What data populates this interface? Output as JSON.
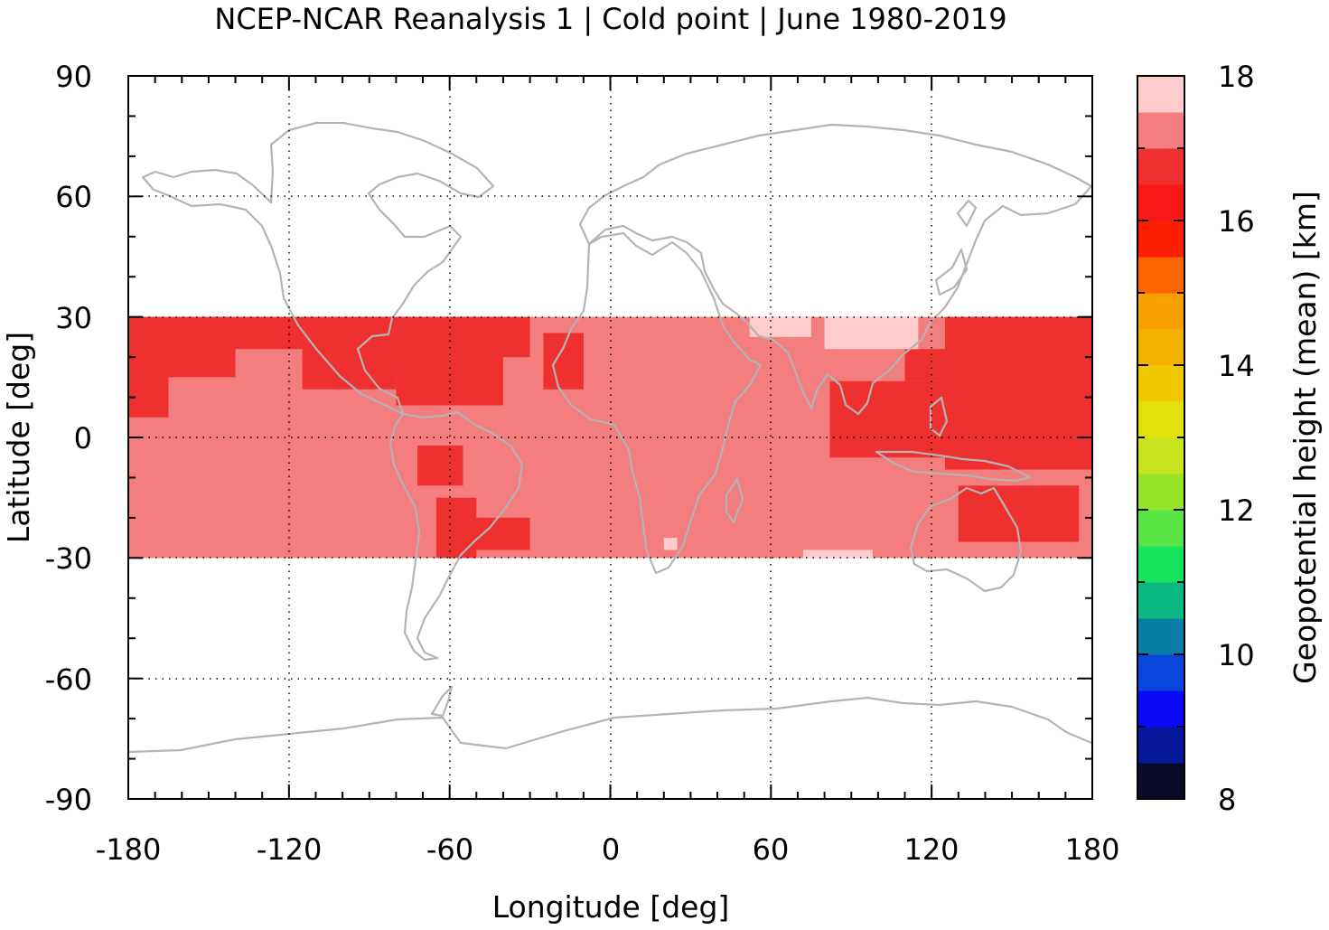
{
  "chart_data": {
    "type": "heatmap",
    "title": "NCEP-NCAR Reanalysis 1 | Cold point | June 1980-2019",
    "xlabel": "Longitude [deg]",
    "ylabel": "Latitude [deg]",
    "colorbar_label": "Geopotential height (mean) [km]",
    "xlim": [
      -180,
      180
    ],
    "ylim": [
      -90,
      90
    ],
    "x_ticks": [
      "-180",
      "-120",
      "-60",
      "0",
      "60",
      "120",
      "180"
    ],
    "x_tick_values": [
      -180,
      -120,
      -60,
      0,
      60,
      120,
      180
    ],
    "y_ticks": [
      "90",
      "60",
      "30",
      "0",
      "-30",
      "-60",
      "-90"
    ],
    "y_tick_values": [
      90,
      60,
      30,
      0,
      -30,
      -60,
      -90
    ],
    "grid": true,
    "data_lat_range": [
      -30,
      30
    ],
    "colorbar": {
      "min": 8,
      "max": 18,
      "step": 0.5,
      "ticks": [
        "18",
        "16",
        "14",
        "12",
        "10",
        "8"
      ],
      "tick_values": [
        18,
        16,
        14,
        12,
        10,
        8
      ],
      "colors": [
        "#0a0a2c",
        "#06189c",
        "#0a0af6",
        "#0a46dc",
        "#0a7ca8",
        "#0ab882",
        "#14e45e",
        "#5ae446",
        "#96e42a",
        "#c8e41e",
        "#e4e00e",
        "#f0c800",
        "#f4b200",
        "#f8a000",
        "#fc6400",
        "#fc1e00",
        "#f81818",
        "#ef3030",
        "#f47d7d",
        "#ffcccc"
      ]
    },
    "field_colors": {
      "17.25": "#ef3030",
      "17.75": "#f47d7d",
      "18.25": "#ffcccc"
    },
    "series": [
      {
        "regions": [
          {
            "value": 17.75,
            "lon": [
              -180,
              180
            ],
            "lat": [
              -30,
              30
            ]
          },
          {
            "value": 17.25,
            "lon": [
              -180,
              -165
            ],
            "lat": [
              5,
              30
            ]
          },
          {
            "value": 17.25,
            "lon": [
              -165,
              -140
            ],
            "lat": [
              15,
              30
            ]
          },
          {
            "value": 17.25,
            "lon": [
              -140,
              -100
            ],
            "lat": [
              22,
              30
            ]
          },
          {
            "value": 17.25,
            "lon": [
              -115,
              -80
            ],
            "lat": [
              12,
              30
            ]
          },
          {
            "value": 17.25,
            "lon": [
              -95,
              -50
            ],
            "lat": [
              16,
              30
            ]
          },
          {
            "value": 17.25,
            "lon": [
              -80,
              -40
            ],
            "lat": [
              8,
              30
            ]
          },
          {
            "value": 17.25,
            "lon": [
              -55,
              -30
            ],
            "lat": [
              20,
              30
            ]
          },
          {
            "value": 17.25,
            "lon": [
              -25,
              -10
            ],
            "lat": [
              12,
              26
            ]
          },
          {
            "value": 17.25,
            "lon": [
              -72,
              -55
            ],
            "lat": [
              -12,
              -2
            ]
          },
          {
            "value": 17.25,
            "lon": [
              -65,
              -50
            ],
            "lat": [
              -30,
              -15
            ]
          },
          {
            "value": 17.25,
            "lon": [
              -55,
              -30
            ],
            "lat": [
              -28,
              -20
            ]
          },
          {
            "value": 17.25,
            "lon": [
              125,
              180
            ],
            "lat": [
              -8,
              30
            ]
          },
          {
            "value": 17.25,
            "lon": [
              82,
              130
            ],
            "lat": [
              -5,
              14
            ]
          },
          {
            "value": 17.25,
            "lon": [
              110,
              130
            ],
            "lat": [
              14,
              22
            ]
          },
          {
            "value": 17.25,
            "lon": [
              130,
              175
            ],
            "lat": [
              -26,
              -12
            ]
          },
          {
            "value": 18.25,
            "lon": [
              80,
              115
            ],
            "lat": [
              22,
              30
            ]
          },
          {
            "value": 18.25,
            "lon": [
              52,
              75
            ],
            "lat": [
              25,
              30
            ]
          },
          {
            "value": 18.25,
            "lon": [
              72,
              98
            ],
            "lat": [
              -30,
              -28
            ]
          },
          {
            "value": 18.25,
            "lon": [
              20,
              25
            ],
            "lat": [
              -28,
              -25
            ]
          }
        ]
      }
    ]
  }
}
